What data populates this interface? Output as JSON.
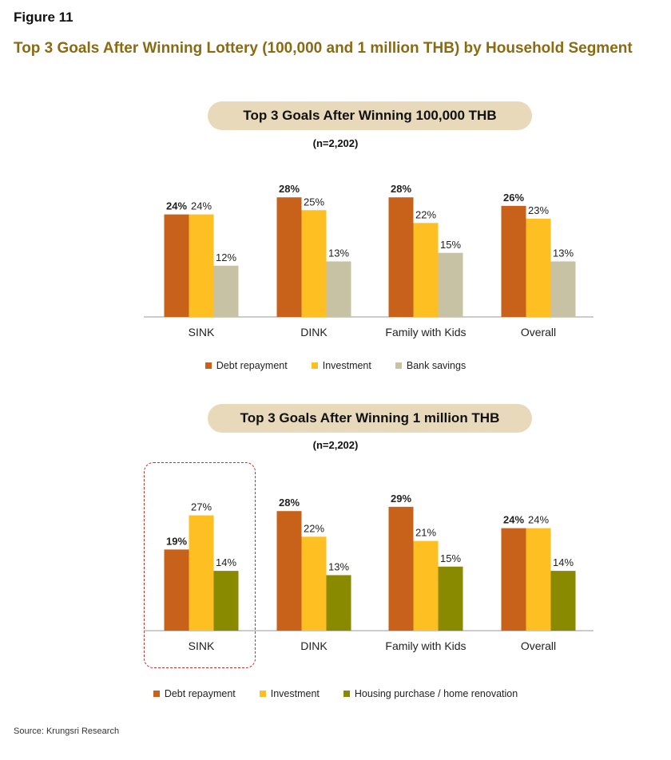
{
  "figure_label": "Figure 11",
  "figure_title": "Top 3 Goals After Winning Lottery (100,000 and 1 million THB) by Household Segment",
  "source": "Source: Krungsri Research",
  "colors": {
    "debt": "#c8611a",
    "investment": "#fdbf22",
    "bank_savings": "#c8c2a4",
    "housing": "#8a8a00"
  },
  "chart_data": [
    {
      "type": "bar",
      "title": "Top 3 Goals After Winning 100,000 THB",
      "subtitle": "(n=2,202)",
      "categories": [
        "SINK",
        "DINK",
        "Family with Kids",
        "Overall"
      ],
      "series": [
        {
          "name": "Debt repayment",
          "values": [
            24,
            28,
            28,
            26
          ],
          "color": "#c8611a",
          "label_bold": true
        },
        {
          "name": "Investment",
          "values": [
            24,
            25,
            22,
            23
          ],
          "color": "#fdbf22",
          "label_bold": false
        },
        {
          "name": "Bank savings",
          "values": [
            12,
            13,
            15,
            13
          ],
          "color": "#c8c2a4",
          "label_bold": false
        }
      ],
      "value_suffix": "%",
      "ylim": [
        0,
        30
      ],
      "xlabel": "",
      "ylabel": ""
    },
    {
      "type": "bar",
      "title": "Top 3 Goals After Winning 1 million THB",
      "subtitle": "(n=2,202)",
      "categories": [
        "SINK",
        "DINK",
        "Family with Kids",
        "Overall"
      ],
      "series": [
        {
          "name": "Debt repayment",
          "values": [
            19,
            28,
            29,
            24
          ],
          "color": "#c8611a",
          "label_bold": true
        },
        {
          "name": "Investment",
          "values": [
            27,
            22,
            21,
            24
          ],
          "color": "#fdbf22",
          "label_bold": false
        },
        {
          "name": "Housing purchase / home renovation",
          "values": [
            14,
            13,
            15,
            14
          ],
          "color": "#8a8a00",
          "label_bold": false
        }
      ],
      "value_suffix": "%",
      "ylim": [
        0,
        30
      ],
      "xlabel": "",
      "ylabel": "",
      "highlight_category": "SINK"
    }
  ]
}
